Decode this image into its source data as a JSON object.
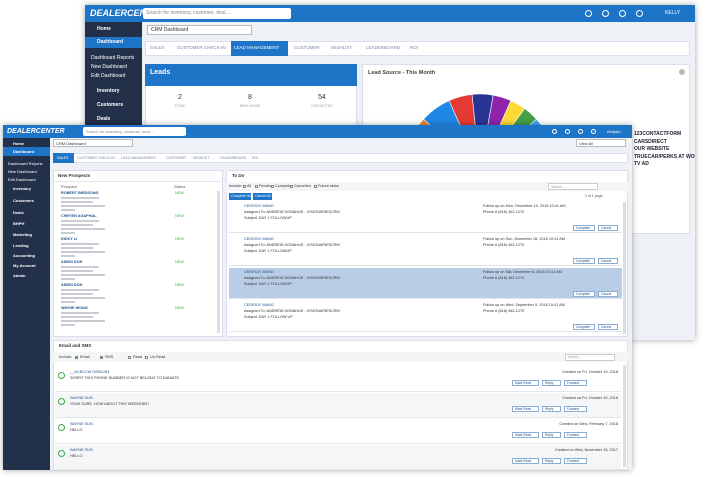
{
  "back_window": {
    "logo": "DEALERCENTER",
    "search_placeholder": "Search for inventory, customer, deal ...",
    "user": "KELLY",
    "sidebar": [
      "Home",
      "Dashboard",
      "Dashboard Reports",
      "New Dashboard",
      "Edit Dashboard",
      "Inventory",
      "Customers",
      "Deals"
    ],
    "dashboard_select": "CRM Dashboard",
    "tabs": [
      "SALES",
      "CUSTOMER CHECK-IN",
      "LEAD MANAGEMENT",
      "CUSTOMER",
      "WISHLIST",
      "LEADERBOARD",
      "ROI"
    ],
    "leads": {
      "title": "Leads",
      "stats": [
        {
          "value": 2,
          "label": "TOTAL"
        },
        {
          "value": 8,
          "label": "NEW LEADS"
        },
        {
          "value": 54,
          "label": "CONTACTED"
        }
      ]
    },
    "lead_source": {
      "title": "Lead Source - This Month",
      "legend": [
        "123CONTACTFORM",
        "CARSDIRECT",
        "OUR WEBSITE",
        "TRUECAR/PERKS AT WORK",
        "TV AD"
      ]
    }
  },
  "front_window": {
    "logo": "DEALERCENTER",
    "search_placeholder": "Search for inventory, customer, deal ...",
    "user": "Kellylyn",
    "sidebar": [
      "Home",
      "Dashboard",
      "Dashboard Reports",
      "New Dashboard",
      "Edit Dashboard",
      "Inventory",
      "Customers",
      "Deals",
      "BHPH",
      "Marketing",
      "Lending",
      "Accounting",
      "My Account",
      "Admin"
    ],
    "dashboard_select": "CRM Dashboard",
    "view_select": "View All",
    "tabs": [
      "SALES",
      "CUSTOMER CHECK-IN",
      "LEAD MANAGEMENT",
      "CUSTOMER",
      "WISHLIST",
      "LEADERBOARD",
      "ROI"
    ],
    "new_prospects": {
      "title": "New Prospects",
      "columns": [
        "Prospect",
        "Status"
      ],
      "rows": [
        {
          "name": "ROBERT BIRDSONG",
          "status": "NEW"
        },
        {
          "name": "CHEYEN AGAPHAL",
          "status": "NEW"
        },
        {
          "name": "RICKY LI",
          "status": "NEW"
        },
        {
          "name": "AIDEN DOH",
          "status": "NEW"
        },
        {
          "name": "AIDEN DOH",
          "status": "NEW"
        },
        {
          "name": "WAYNE WONG",
          "status": "NEW"
        }
      ]
    },
    "todo": {
      "title": "To Do",
      "include_label": "Include:",
      "filters": [
        "All",
        "Pending",
        "Complete",
        "Cancelled",
        "Future tasks"
      ],
      "search_placeholder": "Search ...",
      "complete_all": "Complete All",
      "cancel_all": "Cancel All",
      "pagination": "1 of 1 page",
      "complete": "Complete",
      "cancel": "Cancel",
      "tasks": [
        {
          "name": "CEDRICK WANG",
          "assigned": "Assigned To: ANDREW DONAHUE - VISIONARIESCRM",
          "subject": "Subject: DAY 1 FOLLOWUP",
          "follow_up": "Follow up on Mon, December 10, 2018 10:41 AM",
          "phone": "Phone # (818) 462-1270"
        },
        {
          "name": "CEDRICK WANG",
          "assigned": "Assigned To: ANDREW DONAHUE - VISIONARIESCRM",
          "subject": "Subject: DAY 1 FOLLOWUP",
          "follow_up": "Follow up on Sun, December 16, 2018 10:41 AM",
          "phone": "Phone # (818) 462-1270"
        },
        {
          "name": "CEDRICK WANG",
          "assigned": "Assigned To: ANDREW DONAHUE - VISIONARIESCRM",
          "subject": "Subject: DAY 1 FOLLOWUP",
          "follow_up": "Follow up on Sat, December 8, 2018 10:41 AM",
          "phone": "Phone # (818) 462-1270"
        },
        {
          "name": "CEDRICK WANG",
          "assigned": "Assigned To: ANDREW DONAHUE - VISIONARIESCRM",
          "subject": "Subject: DAY 1 FOLLOW UP",
          "follow_up": "Follow up on Wed, September 5, 2018 10:41 AM",
          "phone": "Phone # (818) 462-1270"
        }
      ]
    },
    "email_sms": {
      "title": "Email and SMS",
      "include_label": "Include:",
      "filters": [
        "Email",
        "SMS",
        "Read",
        "Un-Read"
      ],
      "search_placeholder": "Search ...",
      "mark_read": "Mark Read",
      "reply": "Reply",
      "forward": "Forward",
      "items": [
        {
          "name": "__NCBCCW 09951283",
          "message": "SORRY THIS PHONE NUMBER IS NOT BELONG TO DANIATE",
          "created": "Created on Fri, October 19, 2018"
        },
        {
          "name": "WAYNE SUN",
          "message": "YEAH SURE. HOW ABOUT THIS WEEKEND?",
          "created": "Created on Fri, October 19, 2018"
        },
        {
          "name": "WAYNE SUN",
          "message": "HELLO",
          "created": "Created on Wed, February 7, 2018"
        },
        {
          "name": "WAYNE SUN",
          "message": "HELLO",
          "created": "Created on Wed, November 15, 2017"
        }
      ]
    }
  }
}
